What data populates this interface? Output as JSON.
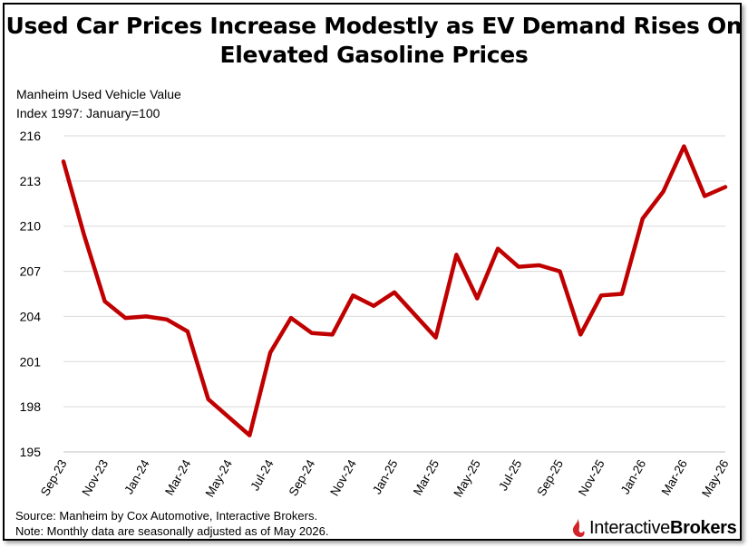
{
  "title_line1": "Used Car Prices Increase Modestly as EV Demand Rises On",
  "title_line2": "Elevated Gasoline Prices",
  "ylabel_line1": "Manheim Used Vehicle Value",
  "ylabel_line2": "Index 1997: January=100",
  "source_line1": "Source: Manheim by Cox Automotive, Interactive Brokers.",
  "source_line2": "Note: Monthly data are seasonally adjusted as of May 2026.",
  "brand": {
    "word1": "Interactive",
    "word2": "Brokers",
    "logo_icon": "ib-logo-icon",
    "logo_color": "#d2232a"
  },
  "chart_data": {
    "type": "line",
    "series_color": "#c00000",
    "grid": true,
    "ylim": [
      195,
      216
    ],
    "yticks": [
      195,
      198,
      201,
      204,
      207,
      210,
      213,
      216
    ],
    "xtick_labels": [
      "Sep-23",
      "Nov-23",
      "Jan-24",
      "Mar-24",
      "May-24",
      "Jul-24",
      "Sep-24",
      "Nov-24",
      "Jan-25",
      "Mar-25",
      "May-25",
      "Jul-25",
      "Sep-25",
      "Nov-25",
      "Jan-26",
      "Mar-26",
      "May-26"
    ],
    "x": [
      "Sep-23",
      "Oct-23",
      "Nov-23",
      "Dec-23",
      "Jan-24",
      "Feb-24",
      "Mar-24",
      "Apr-24",
      "May-24",
      "Jun-24",
      "Jul-24",
      "Aug-24",
      "Sep-24",
      "Oct-24",
      "Nov-24",
      "Dec-24",
      "Jan-25",
      "Feb-25",
      "Mar-25",
      "Apr-25",
      "May-25",
      "Jun-25",
      "Jul-25",
      "Aug-25",
      "Sep-25",
      "Oct-25",
      "Nov-25",
      "Dec-25",
      "Jan-26",
      "Feb-26",
      "Mar-26",
      "Apr-26",
      "May-26"
    ],
    "values": [
      214.3,
      209.4,
      205.0,
      203.9,
      204.0,
      203.8,
      203.0,
      198.5,
      197.3,
      196.1,
      201.6,
      203.9,
      202.9,
      202.8,
      205.4,
      204.7,
      205.6,
      204.1,
      202.6,
      208.1,
      205.2,
      208.5,
      207.3,
      207.4,
      207.0,
      202.8,
      205.4,
      205.5,
      210.5,
      212.3,
      215.3,
      212.0,
      212.6
    ]
  }
}
